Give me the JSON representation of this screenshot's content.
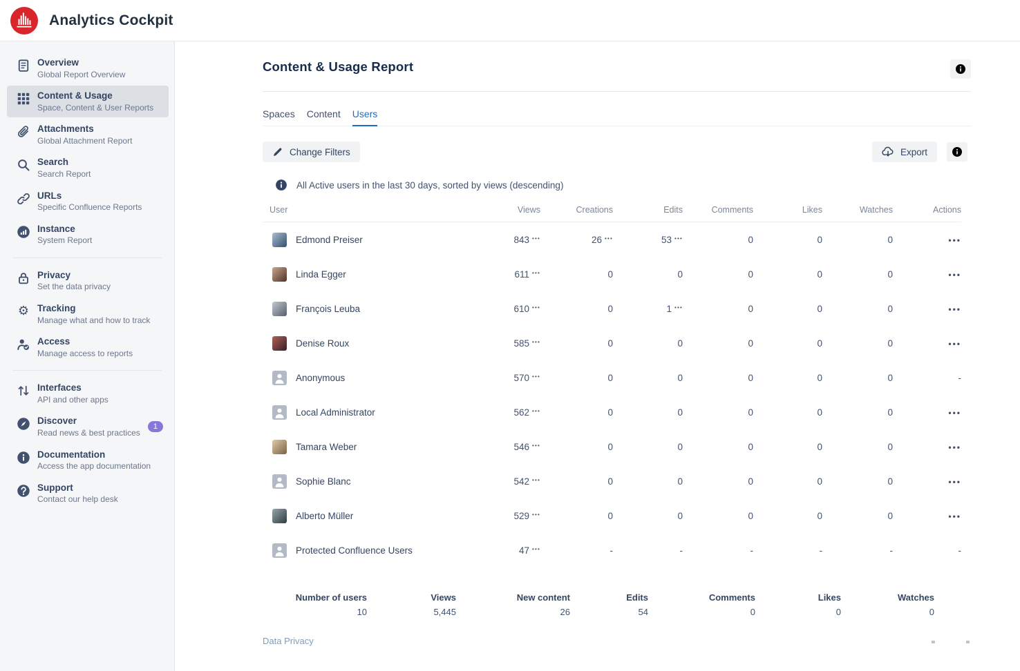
{
  "app": {
    "title": "Analytics Cockpit",
    "logo_icon": "bar-chart-logo-icon"
  },
  "colors": {
    "brand_red": "#d9262c",
    "accent_blue": "#1a6bc7",
    "badge_purple": "#8777d9",
    "sidebar_selected_bg": "#dcdfe4",
    "text_dark": "#344563",
    "text_muted": "#6b778c"
  },
  "sidebar": {
    "groups": [
      {
        "items": [
          {
            "label": "Overview",
            "sublabel": "Global Report Overview",
            "icon": "document-icon",
            "selected": false
          },
          {
            "label": "Content & Usage",
            "sublabel": "Space, Content & User Reports",
            "icon": "grid-icon",
            "selected": true
          },
          {
            "label": "Attachments",
            "sublabel": "Global Attachment Report",
            "icon": "paperclip-icon",
            "selected": false
          },
          {
            "label": "Search",
            "sublabel": "Search Report",
            "icon": "search-icon",
            "selected": false
          },
          {
            "label": "URLs",
            "sublabel": "Specific Confluence Reports",
            "icon": "link-icon",
            "selected": false
          },
          {
            "label": "Instance",
            "sublabel": "System Report",
            "icon": "instance-icon",
            "selected": false
          }
        ]
      },
      {
        "items": [
          {
            "label": "Privacy",
            "sublabel": "Set the data privacy",
            "icon": "lock-icon",
            "selected": false
          },
          {
            "label": "Tracking",
            "sublabel": "Manage what and how to track",
            "icon": "gear-icon",
            "selected": false
          },
          {
            "label": "Access",
            "sublabel": "Manage access to reports",
            "icon": "person-check-icon",
            "selected": false
          }
        ]
      },
      {
        "items": [
          {
            "label": "Interfaces",
            "sublabel": "API and other apps",
            "icon": "arrows-up-down-icon",
            "selected": false
          },
          {
            "label": "Discover",
            "sublabel": "Read news & best practices",
            "icon": "compass-icon",
            "selected": false,
            "badge": "1"
          },
          {
            "label": "Documentation",
            "sublabel": "Access the app documentation",
            "icon": "info-icon",
            "selected": false
          },
          {
            "label": "Support",
            "sublabel": "Contact our help desk",
            "icon": "question-icon",
            "selected": false
          }
        ]
      }
    ]
  },
  "report": {
    "title": "Content & Usage Report",
    "header_info_icon": "info-icon",
    "tabs": [
      {
        "label": "Spaces",
        "selected": false
      },
      {
        "label": "Content",
        "selected": false
      },
      {
        "label": "Users",
        "selected": true
      }
    ],
    "toolbar": {
      "change_filters_label": "Change Filters",
      "change_filters_icon": "pencil-icon",
      "export_label": "Export",
      "export_icon": "cloud-download-icon",
      "info_icon": "info-icon"
    },
    "note": {
      "icon": "info-icon",
      "text": "All Active users in the last 30 days, sorted by views (descending)"
    }
  },
  "table": {
    "columns": [
      "User",
      "Views",
      "Creations",
      "Edits",
      "Comments",
      "Likes",
      "Watches",
      "Actions"
    ],
    "more_indicator": "•••",
    "actions_menu_glyph": "•••",
    "empty_value": "-",
    "rows": [
      {
        "name": "Edmond Preiser",
        "avatar": {
          "type": "photo",
          "c1": "#a8bdd2",
          "c2": "#35506b"
        },
        "cells": [
          {
            "v": "843",
            "more": true
          },
          {
            "v": "26",
            "more": true
          },
          {
            "v": "53",
            "more": true
          },
          {
            "v": "0"
          },
          {
            "v": "0"
          },
          {
            "v": "0"
          }
        ],
        "actions": "menu"
      },
      {
        "name": "Linda Egger",
        "avatar": {
          "type": "photo",
          "c1": "#caa58d",
          "c2": "#4e332b"
        },
        "cells": [
          {
            "v": "611",
            "more": true
          },
          {
            "v": "0"
          },
          {
            "v": "0"
          },
          {
            "v": "0"
          },
          {
            "v": "0"
          },
          {
            "v": "0"
          }
        ],
        "actions": "menu"
      },
      {
        "name": "François Leuba",
        "avatar": {
          "type": "photo",
          "c1": "#c3c8ce",
          "c2": "#55606c"
        },
        "cells": [
          {
            "v": "610",
            "more": true
          },
          {
            "v": "0"
          },
          {
            "v": "1",
            "more": true
          },
          {
            "v": "0"
          },
          {
            "v": "0"
          },
          {
            "v": "0"
          }
        ],
        "actions": "menu"
      },
      {
        "name": "Denise Roux",
        "avatar": {
          "type": "photo",
          "c1": "#b06055",
          "c2": "#33202b"
        },
        "cells": [
          {
            "v": "585",
            "more": true
          },
          {
            "v": "0"
          },
          {
            "v": "0"
          },
          {
            "v": "0"
          },
          {
            "v": "0"
          },
          {
            "v": "0"
          }
        ],
        "actions": "menu"
      },
      {
        "name": "Anonymous",
        "avatar": {
          "type": "generic"
        },
        "cells": [
          {
            "v": "570",
            "more": true
          },
          {
            "v": "0"
          },
          {
            "v": "0"
          },
          {
            "v": "0"
          },
          {
            "v": "0"
          },
          {
            "v": "0"
          }
        ],
        "actions": "dash"
      },
      {
        "name": "Local Administrator",
        "avatar": {
          "type": "generic"
        },
        "cells": [
          {
            "v": "562",
            "more": true
          },
          {
            "v": "0"
          },
          {
            "v": "0"
          },
          {
            "v": "0"
          },
          {
            "v": "0"
          },
          {
            "v": "0"
          }
        ],
        "actions": "menu"
      },
      {
        "name": "Tamara Weber",
        "avatar": {
          "type": "photo",
          "c1": "#e0cba4",
          "c2": "#7a6148"
        },
        "cells": [
          {
            "v": "546",
            "more": true
          },
          {
            "v": "0"
          },
          {
            "v": "0"
          },
          {
            "v": "0"
          },
          {
            "v": "0"
          },
          {
            "v": "0"
          }
        ],
        "actions": "menu"
      },
      {
        "name": "Sophie Blanc",
        "avatar": {
          "type": "generic"
        },
        "cells": [
          {
            "v": "542",
            "more": true
          },
          {
            "v": "0"
          },
          {
            "v": "0"
          },
          {
            "v": "0"
          },
          {
            "v": "0"
          },
          {
            "v": "0"
          }
        ],
        "actions": "menu"
      },
      {
        "name": "Alberto Müller",
        "avatar": {
          "type": "photo",
          "c1": "#97a4ad",
          "c2": "#2f3b3d"
        },
        "cells": [
          {
            "v": "529",
            "more": true
          },
          {
            "v": "0"
          },
          {
            "v": "0"
          },
          {
            "v": "0"
          },
          {
            "v": "0"
          },
          {
            "v": "0"
          }
        ],
        "actions": "menu"
      },
      {
        "name": "Protected Confluence Users",
        "avatar": {
          "type": "generic"
        },
        "cells": [
          {
            "v": "47",
            "more": true
          },
          {
            "v": "-"
          },
          {
            "v": "-"
          },
          {
            "v": "-"
          },
          {
            "v": "-"
          },
          {
            "v": "-"
          }
        ],
        "actions": "dash"
      }
    ]
  },
  "summary": {
    "items": [
      {
        "label": "Number of users",
        "value": "10"
      },
      {
        "label": "Views",
        "value": "5,445"
      },
      {
        "label": "New content",
        "value": "26"
      },
      {
        "label": "Edits",
        "value": "54"
      },
      {
        "label": "Comments",
        "value": "0"
      },
      {
        "label": "Likes",
        "value": "0"
      },
      {
        "label": "Watches",
        "value": "0"
      }
    ]
  },
  "footer": {
    "data_privacy_label": "Data Privacy"
  }
}
